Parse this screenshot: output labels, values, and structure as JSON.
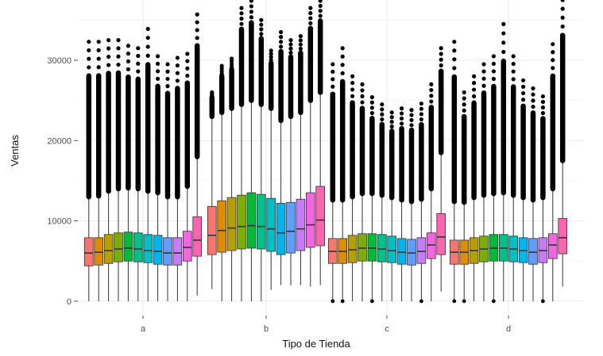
{
  "chart_data": {
    "type": "boxplot",
    "xlabel": "Tipo de Tienda",
    "ylabel": "Ventas",
    "categories": [
      "a",
      "b",
      "c",
      "d"
    ],
    "ylim": [
      -1200,
      37500
    ],
    "yticks": [
      0,
      10000,
      20000,
      30000
    ],
    "ytick_labels": [
      "0",
      "10000",
      "20000",
      "30000"
    ],
    "grid": true,
    "legend": "none",
    "box_colors": [
      "#F8766D",
      "#DE8C00",
      "#B79F00",
      "#7CAE00",
      "#00BA38",
      "#00C08B",
      "#00BFC4",
      "#00B4F0",
      "#619CFF",
      "#C77CFF",
      "#F564E3",
      "#FF64B0"
    ],
    "groups": [
      {
        "name": "a",
        "boxes": [
          {
            "min": 0,
            "q1": 4400,
            "median": 6000,
            "q3": 7900,
            "whisker_high": 13000,
            "outlier_max": 32300
          },
          {
            "min": 0,
            "q1": 4500,
            "median": 6100,
            "q3": 7900,
            "whisker_high": 13100,
            "outlier_max": 32300
          },
          {
            "min": 0,
            "q1": 4700,
            "median": 6300,
            "q3": 8300,
            "whisker_high": 13700,
            "outlier_max": 32500
          },
          {
            "min": 0,
            "q1": 4900,
            "median": 6500,
            "q3": 8500,
            "whisker_high": 14000,
            "outlier_max": 32500
          },
          {
            "min": 0,
            "q1": 5000,
            "median": 6600,
            "q3": 8600,
            "whisker_high": 14100,
            "outlier_max": 31800
          },
          {
            "min": 0,
            "q1": 4900,
            "median": 6500,
            "q3": 8500,
            "whisker_high": 14000,
            "outlier_max": 31500
          },
          {
            "min": 0,
            "q1": 4800,
            "median": 6300,
            "q3": 8300,
            "whisker_high": 13700,
            "outlier_max": 33900
          },
          {
            "min": 0,
            "q1": 4600,
            "median": 6200,
            "q3": 8200,
            "whisker_high": 13500,
            "outlier_max": 30500
          },
          {
            "min": 0,
            "q1": 4500,
            "median": 6000,
            "q3": 7900,
            "whisker_high": 13000,
            "outlier_max": 29500
          },
          {
            "min": 0,
            "q1": 4500,
            "median": 6000,
            "q3": 7900,
            "whisker_high": 13000,
            "outlier_max": 30300
          },
          {
            "min": 0,
            "q1": 5000,
            "median": 6700,
            "q3": 8700,
            "whisker_high": 14300,
            "outlier_max": 30800
          },
          {
            "min": 700,
            "q1": 5600,
            "median": 7600,
            "q3": 10500,
            "whisker_high": 18000,
            "outlier_max": 35700
          }
        ]
      },
      {
        "name": "b",
        "boxes": [
          {
            "min": 1500,
            "q1": 5800,
            "median": 8200,
            "q3": 11800,
            "whisker_high": 23000,
            "outlier_max": 26000
          },
          {
            "min": 0,
            "q1": 6100,
            "median": 8800,
            "q3": 12500,
            "whisker_high": 23500,
            "outlier_max": 29300
          },
          {
            "min": 0,
            "q1": 6300,
            "median": 9100,
            "q3": 12900,
            "whisker_high": 24000,
            "outlier_max": 30200
          },
          {
            "min": 0,
            "q1": 6500,
            "median": 9300,
            "q3": 13200,
            "whisker_high": 24500,
            "outlier_max": 36500
          },
          {
            "min": 0,
            "q1": 6600,
            "median": 9400,
            "q3": 13500,
            "whisker_high": 25000,
            "outlier_max": 37400
          },
          {
            "min": 0,
            "q1": 6500,
            "median": 9300,
            "q3": 13300,
            "whisker_high": 24500,
            "outlier_max": 35000
          },
          {
            "min": 1400,
            "q1": 6200,
            "median": 9000,
            "q3": 12800,
            "whisker_high": 24000,
            "outlier_max": 31200
          },
          {
            "min": 2000,
            "q1": 5800,
            "median": 8500,
            "q3": 12200,
            "whisker_high": 22500,
            "outlier_max": 33500
          },
          {
            "min": 2000,
            "q1": 6000,
            "median": 8700,
            "q3": 12300,
            "whisker_high": 23000,
            "outlier_max": 32500
          },
          {
            "min": 2000,
            "q1": 6300,
            "median": 9000,
            "q3": 12700,
            "whisker_high": 23500,
            "outlier_max": 33000
          },
          {
            "min": 1800,
            "q1": 6700,
            "median": 9500,
            "q3": 13500,
            "whisker_high": 25000,
            "outlier_max": 36500
          },
          {
            "min": 2000,
            "q1": 6900,
            "median": 10100,
            "q3": 14300,
            "whisker_high": 26000,
            "outlier_max": 37400
          }
        ]
      },
      {
        "name": "c",
        "boxes": [
          {
            "min": 0,
            "q1": 4700,
            "median": 6200,
            "q3": 7800,
            "whisker_high": 12600,
            "outlier_max": 29500
          },
          {
            "min": 0,
            "q1": 4700,
            "median": 6200,
            "q3": 7800,
            "whisker_high": 12600,
            "outlier_max": 31500
          },
          {
            "min": 0,
            "q1": 4800,
            "median": 6400,
            "q3": 8200,
            "whisker_high": 13000,
            "outlier_max": 28000
          },
          {
            "min": 0,
            "q1": 5000,
            "median": 6600,
            "q3": 8400,
            "whisker_high": 13400,
            "outlier_max": 27000
          },
          {
            "min": 0,
            "q1": 5000,
            "median": 6600,
            "q3": 8400,
            "whisker_high": 13400,
            "outlier_max": 25400
          },
          {
            "min": 0,
            "q1": 4900,
            "median": 6500,
            "q3": 8300,
            "whisker_high": 13200,
            "outlier_max": 24500
          },
          {
            "min": 0,
            "q1": 4800,
            "median": 6300,
            "q3": 8100,
            "whisker_high": 12900,
            "outlier_max": 23500
          },
          {
            "min": 0,
            "q1": 4600,
            "median": 6100,
            "q3": 7800,
            "whisker_high": 12600,
            "outlier_max": 24000
          },
          {
            "min": 0,
            "q1": 4500,
            "median": 6000,
            "q3": 7700,
            "whisker_high": 12400,
            "outlier_max": 23800
          },
          {
            "min": 0,
            "q1": 4700,
            "median": 6200,
            "q3": 7900,
            "whisker_high": 12700,
            "outlier_max": 24600
          },
          {
            "min": 0,
            "q1": 5300,
            "median": 7000,
            "q3": 8500,
            "whisker_high": 14000,
            "outlier_max": 27000
          },
          {
            "min": 1200,
            "q1": 5800,
            "median": 8000,
            "q3": 10900,
            "whisker_high": 18500,
            "outlier_max": 31500
          }
        ]
      },
      {
        "name": "d",
        "boxes": [
          {
            "min": 0,
            "q1": 4600,
            "median": 6100,
            "q3": 7600,
            "whisker_high": 12400,
            "outlier_max": 32300
          },
          {
            "min": 0,
            "q1": 4600,
            "median": 6100,
            "q3": 7600,
            "whisker_high": 12300,
            "outlier_max": 26000
          },
          {
            "min": 0,
            "q1": 4700,
            "median": 6300,
            "q3": 7900,
            "whisker_high": 12900,
            "outlier_max": 28000
          },
          {
            "min": 0,
            "q1": 4900,
            "median": 6500,
            "q3": 8100,
            "whisker_high": 13200,
            "outlier_max": 29500
          },
          {
            "min": 0,
            "q1": 5000,
            "median": 6600,
            "q3": 8300,
            "whisker_high": 13400,
            "outlier_max": 30500
          },
          {
            "min": 0,
            "q1": 5000,
            "median": 6600,
            "q3": 8300,
            "whisker_high": 13500,
            "outlier_max": 34500
          },
          {
            "min": 0,
            "q1": 4900,
            "median": 6500,
            "q3": 8100,
            "whisker_high": 13200,
            "outlier_max": 30500
          },
          {
            "min": 0,
            "q1": 4800,
            "median": 6300,
            "q3": 7900,
            "whisker_high": 12900,
            "outlier_max": 27500
          },
          {
            "min": 0,
            "q1": 4600,
            "median": 6100,
            "q3": 7800,
            "whisker_high": 12600,
            "outlier_max": 26500
          },
          {
            "min": 0,
            "q1": 4800,
            "median": 6300,
            "q3": 7900,
            "whisker_high": 12900,
            "outlier_max": 25500
          },
          {
            "min": 0,
            "q1": 5300,
            "median": 7000,
            "q3": 8400,
            "whisker_high": 14000,
            "outlier_max": 32000
          },
          {
            "min": 1800,
            "q1": 5900,
            "median": 7900,
            "q3": 10300,
            "whisker_high": 17500,
            "outlier_max": 37500
          }
        ]
      }
    ]
  }
}
